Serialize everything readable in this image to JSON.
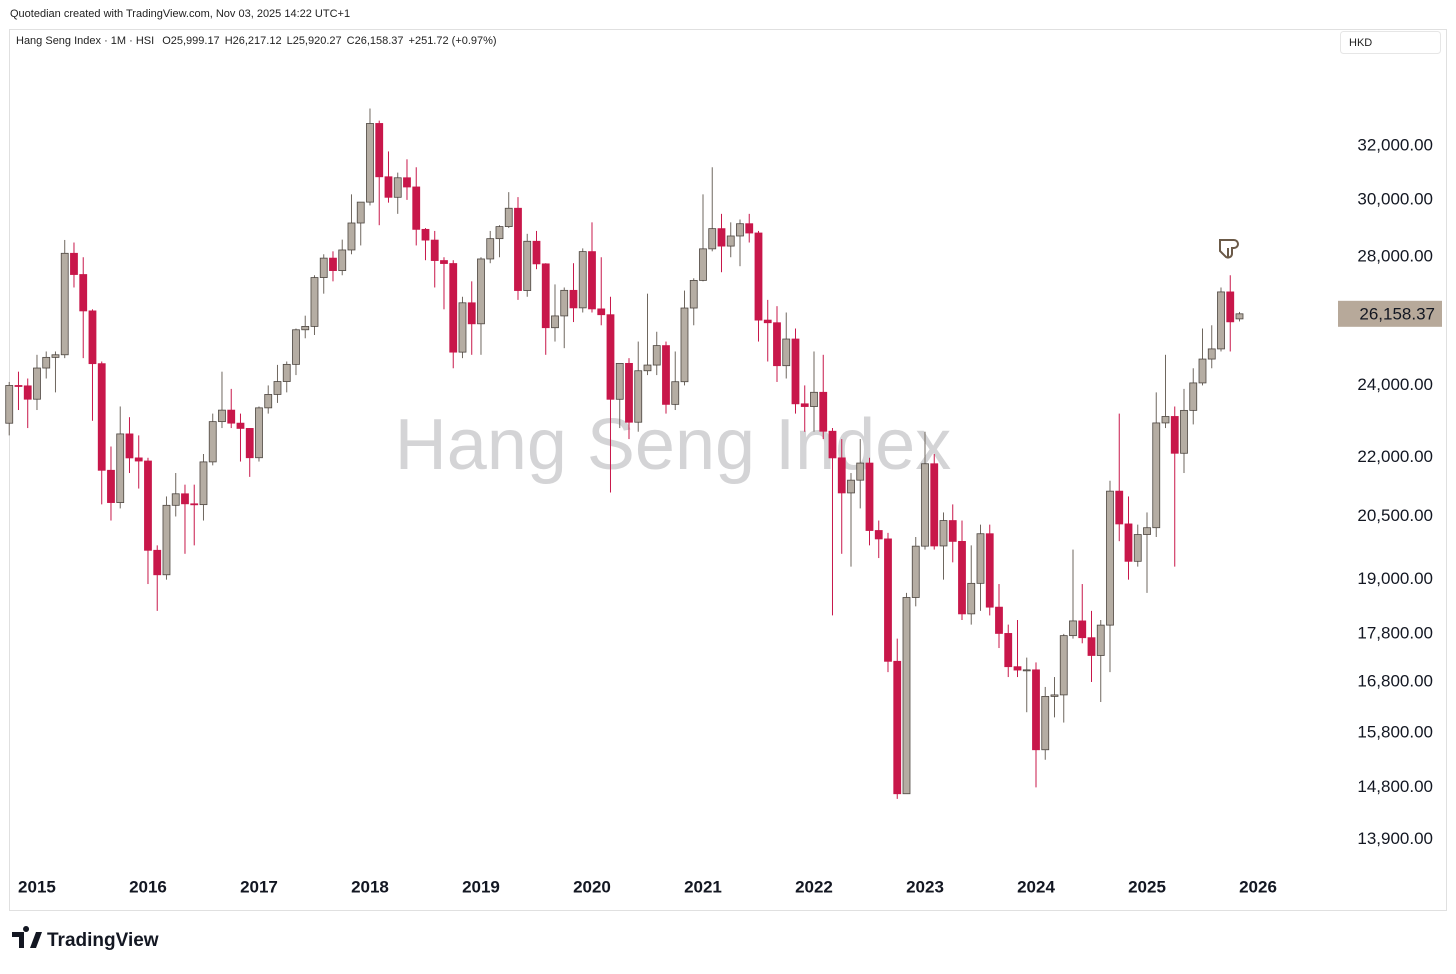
{
  "header": {
    "credit": "Quotedian created with TradingView.com, Nov 03, 2025 14:22 UTC+1",
    "instrument": "Hang Seng Index · 1M · HSI",
    "ohlc": [
      "O25,999.17",
      "H26,217.12",
      "L25,920.27",
      "C26,158.37",
      "+251.72 (+0.97%)"
    ],
    "currency": "HKD"
  },
  "footer": {
    "logo": "TradingView"
  },
  "chart_data": {
    "type": "candlestick",
    "watermark": "Hang Seng Index",
    "log_scale": true,
    "up_color": "#b5ada3",
    "down_color": "#c8174a",
    "last_price_label": "26,158.37",
    "xlim": [
      -0.5,
      143
    ],
    "ylim": [
      13400,
      36800
    ],
    "xticks": [
      {
        "value": 3,
        "label": "2015"
      },
      {
        "value": 15,
        "label": "2016"
      },
      {
        "value": 27,
        "label": "2017"
      },
      {
        "value": 39,
        "label": "2018"
      },
      {
        "value": 51,
        "label": "2019"
      },
      {
        "value": 63,
        "label": "2020"
      },
      {
        "value": 75,
        "label": "2021"
      },
      {
        "value": 87,
        "label": "2022"
      },
      {
        "value": 99,
        "label": "2023"
      },
      {
        "value": 111,
        "label": "2024"
      },
      {
        "value": 123,
        "label": "2025"
      },
      {
        "value": 135,
        "label": "2026"
      }
    ],
    "yticks": [
      {
        "value": 32000,
        "label": "32,000.00"
      },
      {
        "value": 30000,
        "label": "30,000.00"
      },
      {
        "value": 28000,
        "label": "28,000.00"
      },
      {
        "value": 24000,
        "label": "24,000.00"
      },
      {
        "value": 22000,
        "label": "22,000.00"
      },
      {
        "value": 20500,
        "label": "20,500.00"
      },
      {
        "value": 19000,
        "label": "19,000.00"
      },
      {
        "value": 17800,
        "label": "17,800.00"
      },
      {
        "value": 16800,
        "label": "16,800.00"
      },
      {
        "value": 15800,
        "label": "15,800.00"
      },
      {
        "value": 14800,
        "label": "14,800.00"
      },
      {
        "value": 13900,
        "label": "13,900.00"
      }
    ],
    "open": [
      22933,
      23998,
      23987,
      23605,
      24507,
      24823,
      24901,
      28133,
      27424,
      26250,
      24636,
      21671,
      20846,
      22640,
      21996,
      21914,
      19683,
      19112,
      20777,
      21067,
      20815,
      20794,
      21891,
      22977,
      23297,
      22935,
      22790,
      22001,
      23361,
      23741,
      24112,
      24615,
      25661,
      25765,
      27324,
      27970,
      27554,
      28246,
      29177,
      29919,
      32887,
      30845,
      30093,
      30808,
      30469,
      28955,
      28583,
      27889,
      27789,
      24980,
      26507,
      25846,
      27942,
      28633,
      29051,
      29699,
      26901,
      28543,
      27778,
      25725,
      26092,
      26907,
      26346,
      28190,
      26313,
      26130,
      23603,
      24644,
      22961,
      24427,
      24595,
      25177,
      23459,
      24107,
      26341,
      27231,
      28284,
      28980,
      28378,
      28725,
      29152,
      28828,
      25961,
      25879,
      24576,
      25377,
      23475,
      23398,
      23802,
      22713,
      21997,
      21089,
      21415,
      21860,
      20157,
      19954,
      17223,
      14687,
      18597,
      19781,
      21842,
      19786,
      20400,
      19895,
      18234,
      18916,
      20079,
      18382,
      17810,
      17112,
      17043,
      17047,
      15485,
      16511,
      16541,
      17763,
      18080,
      17719,
      17344,
      17989,
      21134,
      20317,
      19424,
      20060,
      20225,
      22941,
      23120,
      22119,
      23290,
      24072,
      24773,
      25077,
      26856,
      25999.17
    ],
    "high": [
      24100,
      24400,
      24200,
      24900,
      25000,
      25000,
      28588,
      28500,
      28000,
      26300,
      24700,
      22300,
      23400,
      23100,
      22600,
      22000,
      19800,
      21000,
      21600,
      21300,
      21300,
      22100,
      23200,
      24400,
      23900,
      23200,
      22800,
      23400,
      24000,
      24600,
      24700,
      25700,
      26100,
      27400,
      28100,
      28200,
      28600,
      30200,
      29900,
      33484,
      33000,
      31800,
      31000,
      31500,
      31200,
      29000,
      28900,
      28000,
      27900,
      26700,
      27200,
      28000,
      28900,
      29100,
      30280,
      30100,
      28800,
      28900,
      27800,
      27100,
      27000,
      27800,
      28300,
      29200,
      28000,
      26700,
      24600,
      24800,
      25300,
      26800,
      25600,
      25300,
      25000,
      26900,
      27300,
      30200,
      31200,
      29500,
      29200,
      29300,
      29500,
      28900,
      26600,
      26400,
      26200,
      25700,
      24000,
      25000,
      24900,
      22800,
      22500,
      21600,
      22500,
      22000,
      20400,
      20100,
      17700,
      18700,
      20000,
      22700,
      22100,
      20600,
      20800,
      20400,
      19800,
      20300,
      20300,
      18900,
      18000,
      18100,
      17300,
      17200,
      16700,
      16900,
      17800,
      19700,
      18900,
      18300,
      18100,
      21400,
      23200,
      21000,
      20300,
      20600,
      23800,
      24900,
      23400,
      23900,
      24500,
      25700,
      25800,
      27000,
      27400,
      26217.12
    ],
    "low": [
      22600,
      23300,
      22800,
      23300,
      24200,
      23800,
      24800,
      27000,
      24800,
      23000,
      20800,
      20400,
      20700,
      21600,
      21200,
      18900,
      18300,
      19000,
      20500,
      19600,
      19800,
      20400,
      21800,
      22800,
      22800,
      21900,
      21500,
      21900,
      23200,
      23500,
      23800,
      24300,
      25400,
      25500,
      26800,
      27200,
      27400,
      28100,
      28400,
      29800,
      29100,
      29900,
      29500,
      30000,
      28400,
      27900,
      27000,
      26300,
      24500,
      24800,
      24900,
      24900,
      27800,
      28000,
      29000,
      26600,
      26700,
      27600,
      24900,
      25300,
      25100,
      25900,
      26200,
      26200,
      25800,
      21100,
      22800,
      22500,
      22700,
      24300,
      24300,
      23200,
      23300,
      24000,
      25800,
      27200,
      28200,
      27500,
      28000,
      27700,
      28500,
      25300,
      24700,
      24100,
      24200,
      23200,
      22700,
      22700,
      22500,
      18200,
      19600,
      19300,
      20700,
      19800,
      19500,
      17000,
      14597,
      14700,
      18400,
      19700,
      19700,
      19000,
      19400,
      18100,
      18000,
      18300,
      18200,
      17500,
      16900,
      16900,
      16200,
      14800,
      15300,
      16100,
      16000,
      17700,
      17600,
      16800,
      16400,
      17000,
      19900,
      19000,
      19300,
      18700,
      20000,
      22800,
      19300,
      21600,
      22900,
      24000,
      24500,
      25000,
      25000,
      25920.27
    ],
    "close": [
      23998,
      23987,
      23605,
      24507,
      24823,
      24901,
      28133,
      27424,
      26250,
      24636,
      21671,
      20846,
      22640,
      21996,
      21914,
      19683,
      19112,
      20777,
      21067,
      20815,
      20794,
      21891,
      22977,
      23297,
      22935,
      22790,
      22001,
      23361,
      23741,
      24112,
      24615,
      25661,
      25765,
      27324,
      27970,
      27554,
      28246,
      29177,
      29919,
      32887,
      30845,
      30093,
      30808,
      30469,
      28955,
      28583,
      27889,
      27789,
      24980,
      26507,
      25846,
      27942,
      28633,
      29051,
      29699,
      26901,
      28543,
      27778,
      25725,
      26092,
      26907,
      26346,
      28190,
      26313,
      26130,
      23603,
      24644,
      22961,
      24427,
      24595,
      25177,
      23459,
      24107,
      26341,
      27231,
      28284,
      28980,
      28378,
      28725,
      29152,
      28828,
      25961,
      25879,
      24576,
      25377,
      23475,
      23398,
      23802,
      22713,
      21997,
      21089,
      21415,
      21860,
      20157,
      19954,
      17223,
      14687,
      18597,
      19781,
      21842,
      19786,
      20400,
      19895,
      18234,
      18916,
      20079,
      18382,
      17810,
      17112,
      17043,
      17047,
      15485,
      16511,
      16541,
      17763,
      18080,
      17719,
      17344,
      17989,
      21134,
      20317,
      19424,
      20060,
      20225,
      22941,
      23120,
      22119,
      23290,
      24072,
      24773,
      25077,
      26856,
      25907,
      26158.37
    ]
  }
}
